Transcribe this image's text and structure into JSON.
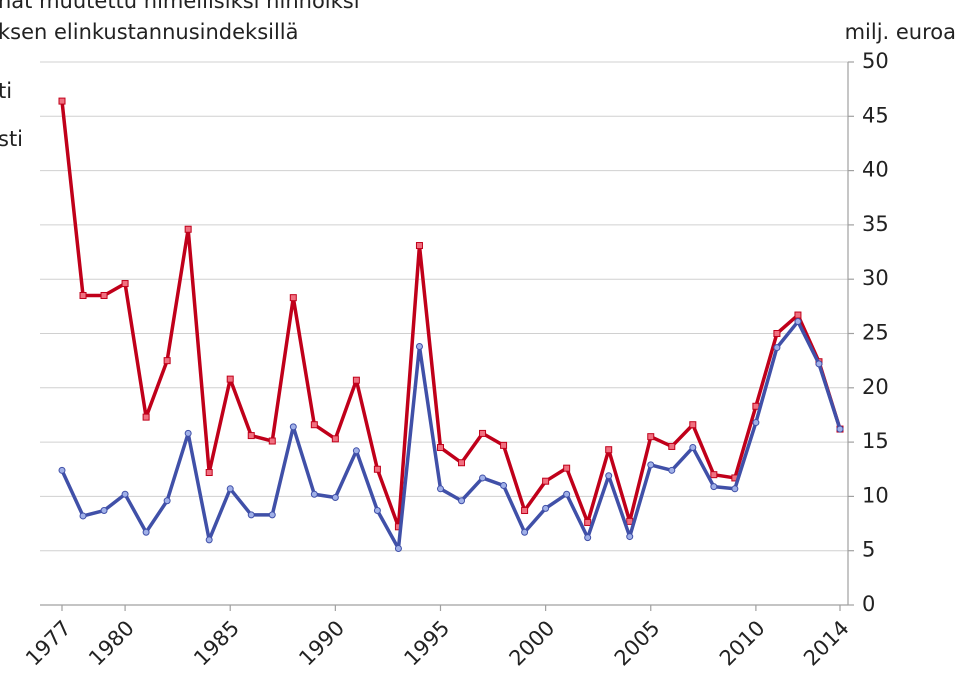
{
  "chart_data": {
    "type": "line",
    "title": "nat muutettu nimellisiksi hinnoiksi",
    "subtitle": "ksen  elinkustannusindeksillä",
    "y_label": "milj. euroa",
    "x": [
      1977,
      1978,
      1979,
      1980,
      1981,
      1982,
      1983,
      1984,
      1985,
      1986,
      1987,
      1988,
      1989,
      1990,
      1991,
      1992,
      1993,
      1994,
      1995,
      1996,
      1997,
      1998,
      1999,
      2000,
      2001,
      2002,
      2003,
      2004,
      2005,
      2006,
      2007,
      2008,
      2009,
      2010,
      2011,
      2012,
      2013,
      2014
    ],
    "series": [
      {
        "name": "ti",
        "color": "#c0001a",
        "marker_color": "#f07080",
        "values": [
          46.4,
          28.5,
          28.5,
          29.6,
          17.3,
          22.5,
          34.6,
          12.2,
          20.8,
          15.6,
          15.1,
          28.3,
          16.6,
          15.3,
          20.7,
          12.5,
          7.2,
          33.1,
          14.5,
          13.1,
          15.8,
          14.7,
          8.7,
          11.4,
          12.6,
          7.6,
          14.3,
          7.7,
          15.5,
          14.6,
          16.6,
          12.0,
          11.7,
          18.3,
          25.0,
          26.7,
          22.4,
          16.2
        ]
      },
      {
        "name": "sti",
        "color": "#4050a8",
        "marker_color": "#a0b0e8",
        "values": [
          12.4,
          8.2,
          8.7,
          10.2,
          6.7,
          9.6,
          15.8,
          6.0,
          10.7,
          8.3,
          8.3,
          16.4,
          10.2,
          9.9,
          14.2,
          8.7,
          5.2,
          23.8,
          10.7,
          9.6,
          11.7,
          11.0,
          6.7,
          8.9,
          10.2,
          6.2,
          11.9,
          6.3,
          12.9,
          12.4,
          14.5,
          10.9,
          10.7,
          16.8,
          23.7,
          26.1,
          22.2,
          16.2
        ]
      }
    ],
    "xlim": [
      1977,
      2014
    ],
    "xticks": [
      1977,
      1980,
      1985,
      1990,
      1995,
      2000,
      2005,
      2010,
      2014
    ],
    "ylim": [
      0,
      50
    ],
    "yticks": [
      0,
      5,
      10,
      15,
      20,
      25,
      30,
      35,
      40,
      45,
      50
    ],
    "grid": true
  }
}
